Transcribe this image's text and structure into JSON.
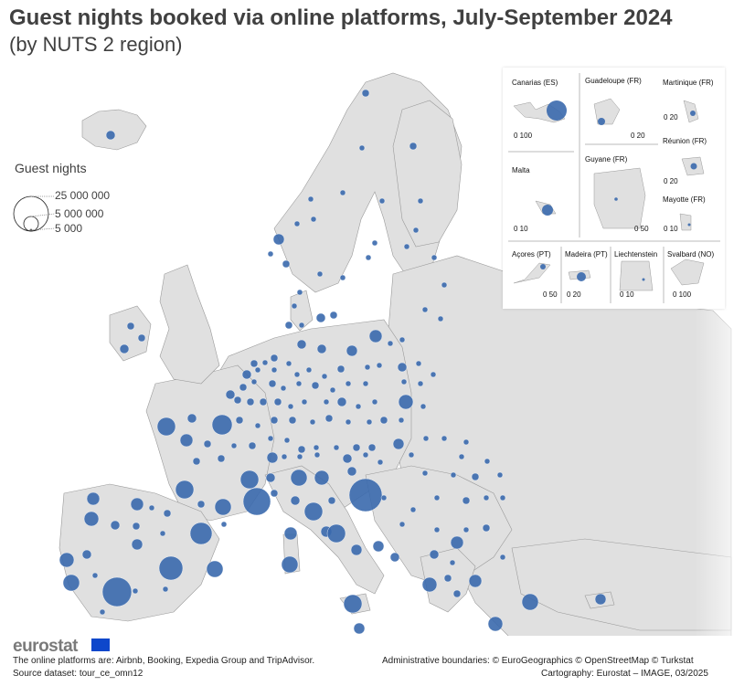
{
  "header": {
    "title": "Guest nights booked via online platforms, July-September 2024",
    "subtitle": "(by NUTS 2 region)"
  },
  "legend": {
    "title": "Guest nights",
    "labels": [
      "25 000 000",
      "5 000 000",
      "5 000"
    ]
  },
  "insets": [
    {
      "name": "Canarias (ES)",
      "scale": "0 100"
    },
    {
      "name": "Guadeloupe (FR)",
      "scale": "0 20"
    },
    {
      "name": "Martinique (FR)",
      "scale": "0 20"
    },
    {
      "name": "Réunion (FR)",
      "scale": "0 20"
    },
    {
      "name": "Malta",
      "scale": "0 10"
    },
    {
      "name": "Guyane (FR)",
      "scale": "0 50"
    },
    {
      "name": "Mayotte (FR)",
      "scale": "0 10"
    },
    {
      "name": "Açores (PT)",
      "scale": "0 50"
    },
    {
      "name": "Madeira (PT)",
      "scale": "0 20"
    },
    {
      "name": "Liechtenstein",
      "scale": "0 10"
    },
    {
      "name": "Svalbard (NO)",
      "scale": "0 100"
    }
  ],
  "footer": {
    "logo": "eurostat",
    "note": "The online platforms are: Airbnb, Booking, Expedia Group and TripAdvisor.",
    "source": "Source dataset: tour_ce_omn12",
    "boundaries": "Administrative boundaries: © EuroGeographics © OpenStreetMap © Turkstat",
    "cartography": "Cartography: Eurostat – IMAGE, 03/2025"
  },
  "colors": {
    "bubble": "#3a69ad",
    "land": "#e0e0e0",
    "boundary": "#9a9a9a",
    "sea": "#ffffff"
  }
}
